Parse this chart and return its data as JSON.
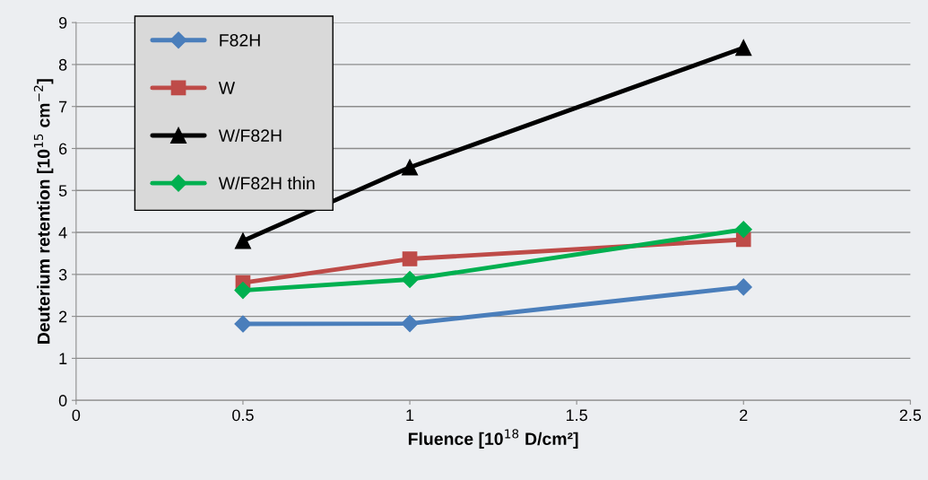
{
  "chart_data": {
    "type": "line",
    "xlabel": "Fluence [10$^{18}$ D/cm²]",
    "ylabel": "Deuterium retention [10$^{15}$ cm$^{−2}$]",
    "xlim": [
      0,
      2.5
    ],
    "xticks": [
      0,
      0.5,
      1,
      1.5,
      2,
      2.5
    ],
    "ylim": [
      0,
      9
    ],
    "yticks": [
      0,
      1,
      2,
      3,
      4,
      5,
      6,
      7,
      8,
      9
    ],
    "grid": "y",
    "legend": "top left",
    "line_style": "solid",
    "series": [
      {
        "name": "F82H",
        "color": "#4a7ebb",
        "marker": "diamond",
        "x": [
          0.5,
          1,
          2
        ],
        "values": [
          1.82,
          1.83,
          2.7
        ]
      },
      {
        "name": "W",
        "color": "#be4b48",
        "marker": "square",
        "x": [
          0.5,
          1,
          2
        ],
        "values": [
          2.8,
          3.37,
          3.83
        ]
      },
      {
        "name": "W/F82H",
        "color": "#000000",
        "marker": "triangle",
        "x": [
          0.5,
          1,
          2
        ],
        "values": [
          3.8,
          5.55,
          8.4
        ]
      },
      {
        "name": "W/F82H thin",
        "color": "#00b050",
        "marker": "diamond",
        "x": [
          0.5,
          1,
          2
        ],
        "values": [
          2.62,
          2.88,
          4.07
        ]
      }
    ]
  }
}
